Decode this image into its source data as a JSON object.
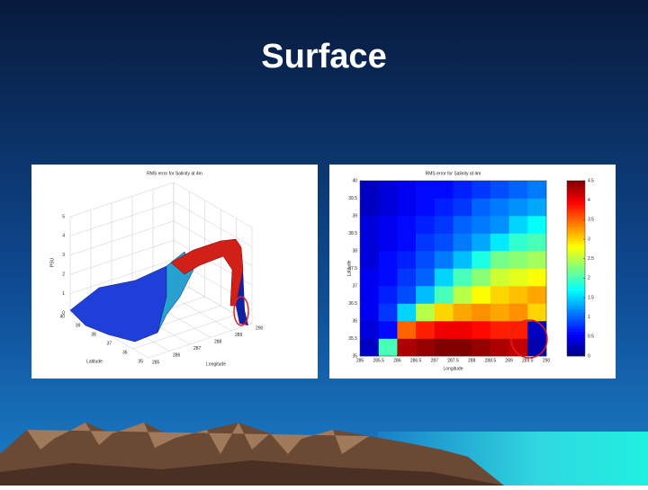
{
  "slide_title": "Surface",
  "chart_data": [
    {
      "type": "surface",
      "title": "RMS error for Salinity at 4m",
      "xlabel": "Longitude",
      "ylabel": "Latitude",
      "zlabel": "PSU",
      "xlim": [
        285,
        290
      ],
      "xticks": [
        285,
        286,
        287,
        288,
        289,
        290
      ],
      "ylim": [
        35,
        40
      ],
      "yticks": [
        35,
        36,
        37,
        38,
        39,
        40
      ],
      "zlim": [
        0,
        5
      ],
      "zticks": [
        0,
        1,
        2,
        3,
        4,
        5
      ]
    },
    {
      "type": "heatmap",
      "title": "RMS error for Salinity at 4m",
      "xlabel": "Longitude",
      "ylabel": "Latitude",
      "xlim": [
        285,
        290
      ],
      "xticks": [
        285,
        285.5,
        286,
        286.5,
        287,
        287.5,
        288,
        288.5,
        289,
        289.5,
        290
      ],
      "ylim": [
        35,
        40
      ],
      "yticks": [
        35,
        35.5,
        36,
        36.5,
        37,
        37.5,
        38,
        38.5,
        39,
        39.5,
        40
      ],
      "clim": [
        0,
        4.5
      ],
      "cticks": [
        0,
        0.5,
        1,
        1.5,
        2,
        2.5,
        3,
        3.5,
        4,
        4.5
      ],
      "z": [
        [
          0.3,
          2.0,
          4.3,
          4.4,
          4.5,
          4.5,
          4.4,
          4.3,
          4.2,
          0.2
        ],
        [
          0.4,
          0.6,
          3.5,
          3.8,
          4.0,
          4.0,
          3.9,
          3.8,
          3.8,
          0.3
        ],
        [
          0.5,
          0.8,
          1.5,
          2.5,
          3.0,
          3.2,
          3.3,
          3.2,
          3.3,
          3.0
        ],
        [
          0.5,
          0.7,
          0.9,
          1.4,
          2.0,
          2.5,
          2.8,
          3.0,
          3.1,
          3.2
        ],
        [
          0.5,
          0.6,
          0.8,
          1.0,
          1.5,
          2.0,
          2.3,
          2.6,
          2.7,
          2.8
        ],
        [
          0.4,
          0.6,
          0.7,
          0.9,
          1.1,
          1.4,
          1.8,
          2.2,
          2.3,
          2.4
        ],
        [
          0.4,
          0.5,
          0.6,
          0.8,
          0.9,
          1.1,
          1.3,
          1.6,
          1.9,
          2.0
        ],
        [
          0.4,
          0.5,
          0.6,
          0.7,
          0.8,
          1.0,
          1.1,
          1.2,
          1.5,
          1.7
        ],
        [
          0.3,
          0.4,
          0.5,
          0.6,
          0.7,
          0.8,
          1.0,
          1.1,
          1.2,
          1.3
        ],
        [
          0.3,
          0.4,
          0.5,
          0.6,
          0.6,
          0.7,
          0.8,
          0.9,
          1.0,
          1.1
        ]
      ]
    }
  ]
}
